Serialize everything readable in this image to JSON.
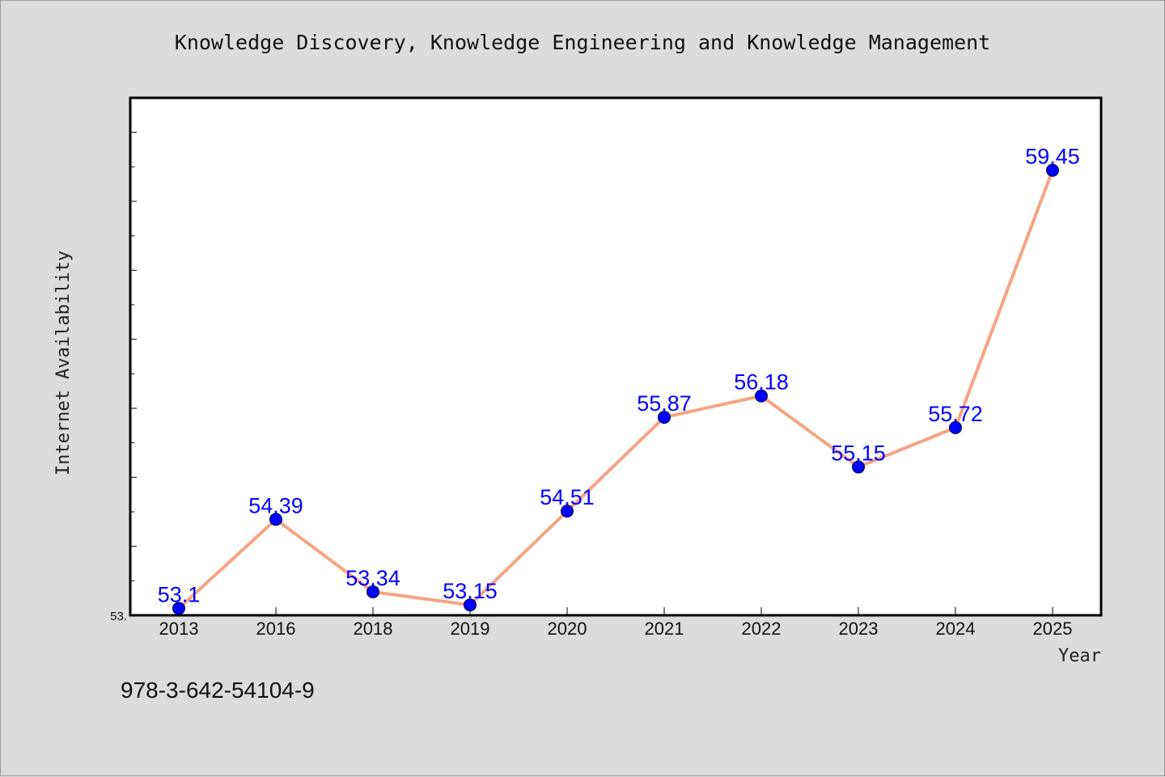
{
  "chart_data": {
    "type": "line",
    "title": "Knowledge Discovery, Knowledge Engineering and Knowledge Management",
    "xlabel": "Year",
    "ylabel": "Internet Availability",
    "categories": [
      "2013",
      "2016",
      "2018",
      "2019",
      "2020",
      "2021",
      "2022",
      "2023",
      "2024",
      "2025"
    ],
    "series": [
      {
        "values": [
          53.1,
          54.39,
          53.34,
          53.15,
          54.51,
          55.87,
          56.18,
          55.15,
          55.72,
          59.45
        ],
        "labels": [
          "53.1",
          "54.39",
          "53.34",
          "53.15",
          "54.51",
          "55.87",
          "56.18",
          "55.15",
          "55.72",
          "59.45"
        ]
      }
    ],
    "y_tick_labels": [
      "53."
    ],
    "ylim": [
      53.0,
      60.5
    ],
    "grid": false,
    "line_color": "#f4a582",
    "marker_color": "#0000ff",
    "label_color": "#0000ff",
    "background_color": "#dcdcdc",
    "plot_background_color": "#ffffff"
  },
  "footer_text": "978-3-642-54104-9"
}
